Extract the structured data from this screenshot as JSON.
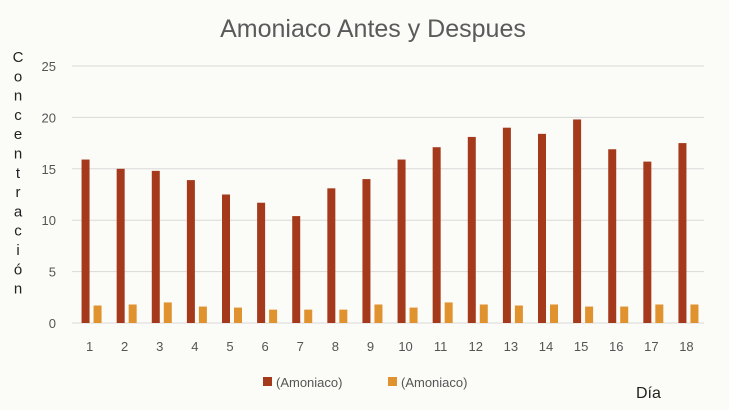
{
  "chart_data": {
    "type": "bar",
    "title": "Amoniaco Antes y Despues",
    "xlabel": "Día",
    "ylabel": "Concentración",
    "ylim": [
      0,
      25
    ],
    "yticks": [
      0,
      5,
      10,
      15,
      20,
      25
    ],
    "grid": true,
    "legend_position": "bottom",
    "categories": [
      "1",
      "2",
      "3",
      "4",
      "5",
      "6",
      "7",
      "8",
      "9",
      "10",
      "11",
      "12",
      "13",
      "14",
      "15",
      "16",
      "17",
      "18"
    ],
    "series": [
      {
        "name": "(Amoniaco)",
        "color": "#a5391c",
        "values": [
          15.9,
          15.0,
          14.8,
          13.9,
          12.5,
          11.7,
          10.4,
          13.1,
          14.0,
          15.9,
          17.1,
          18.1,
          19.0,
          18.4,
          19.8,
          16.9,
          15.7,
          17.5
        ]
      },
      {
        "name": "(Amoniaco)",
        "color": "#e0922e",
        "values": [
          1.7,
          1.8,
          2.0,
          1.6,
          1.5,
          1.3,
          1.3,
          1.3,
          1.8,
          1.5,
          2.0,
          1.8,
          1.7,
          1.8,
          1.6,
          1.6,
          1.8,
          1.8
        ]
      }
    ]
  }
}
